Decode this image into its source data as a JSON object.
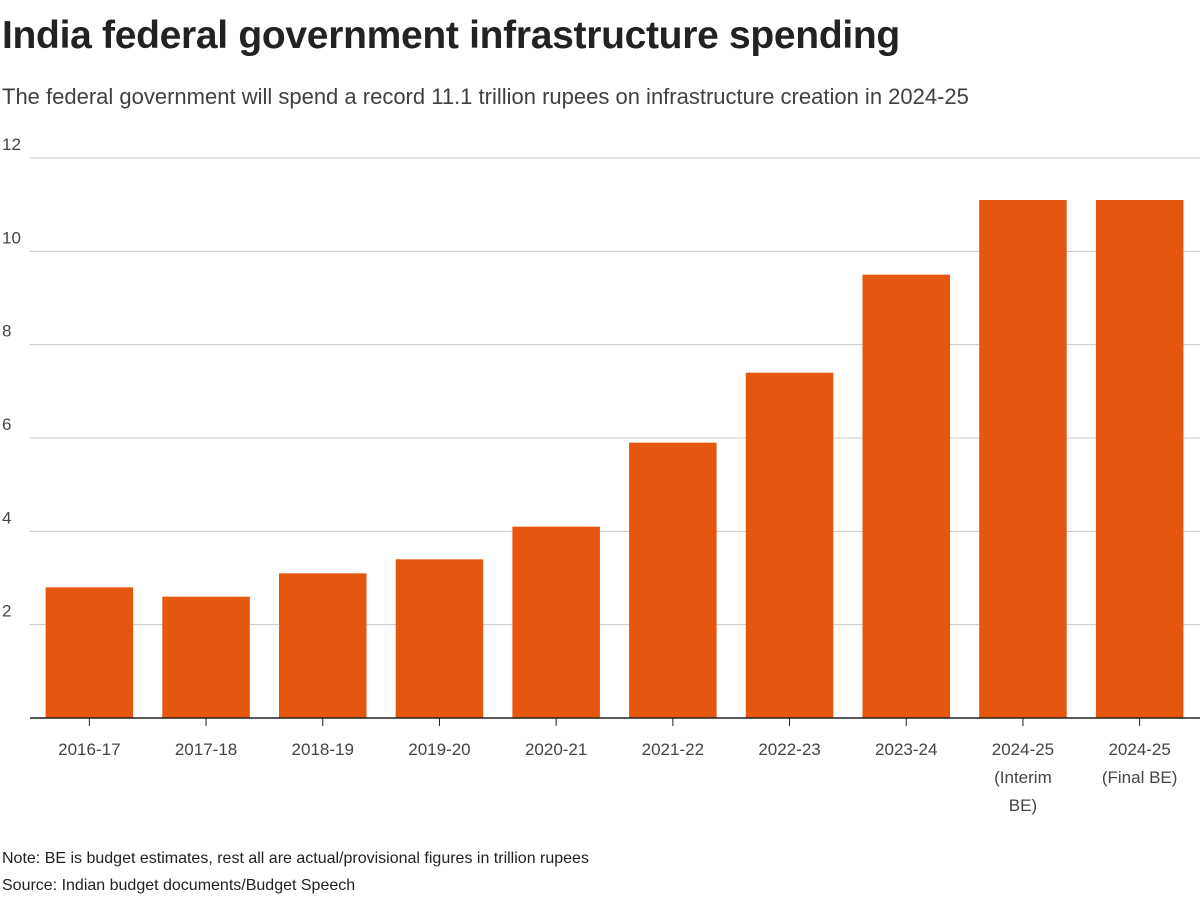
{
  "chart_data": {
    "type": "bar",
    "title": "India federal government infrastructure spending",
    "subtitle": "The federal government will spend a record 11.1 trillion rupees on infrastructure creation in 2024-25",
    "categories": [
      [
        "2016-17"
      ],
      [
        "2017-18"
      ],
      [
        "2018-19"
      ],
      [
        "2019-20"
      ],
      [
        "2020-21"
      ],
      [
        "2021-22"
      ],
      [
        "2022-23"
      ],
      [
        "2023-24"
      ],
      [
        "2024-25",
        "(Interim",
        "BE)"
      ],
      [
        "2024-25",
        "(Final BE)"
      ]
    ],
    "values": [
      2.8,
      2.6,
      3.1,
      3.4,
      4.1,
      5.9,
      7.4,
      9.5,
      11.1,
      11.1
    ],
    "yticks": [
      2,
      4,
      6,
      8,
      10,
      12
    ],
    "ylim": [
      0,
      12
    ],
    "xlabel": "",
    "ylabel": "",
    "grid": true,
    "legend": "none",
    "bar_color": "#e5560e",
    "note": "Note: BE is budget estimates, rest all are actual/provisional figures in trillion rupees",
    "source": "Source: Indian budget documents/Budget Speech"
  }
}
